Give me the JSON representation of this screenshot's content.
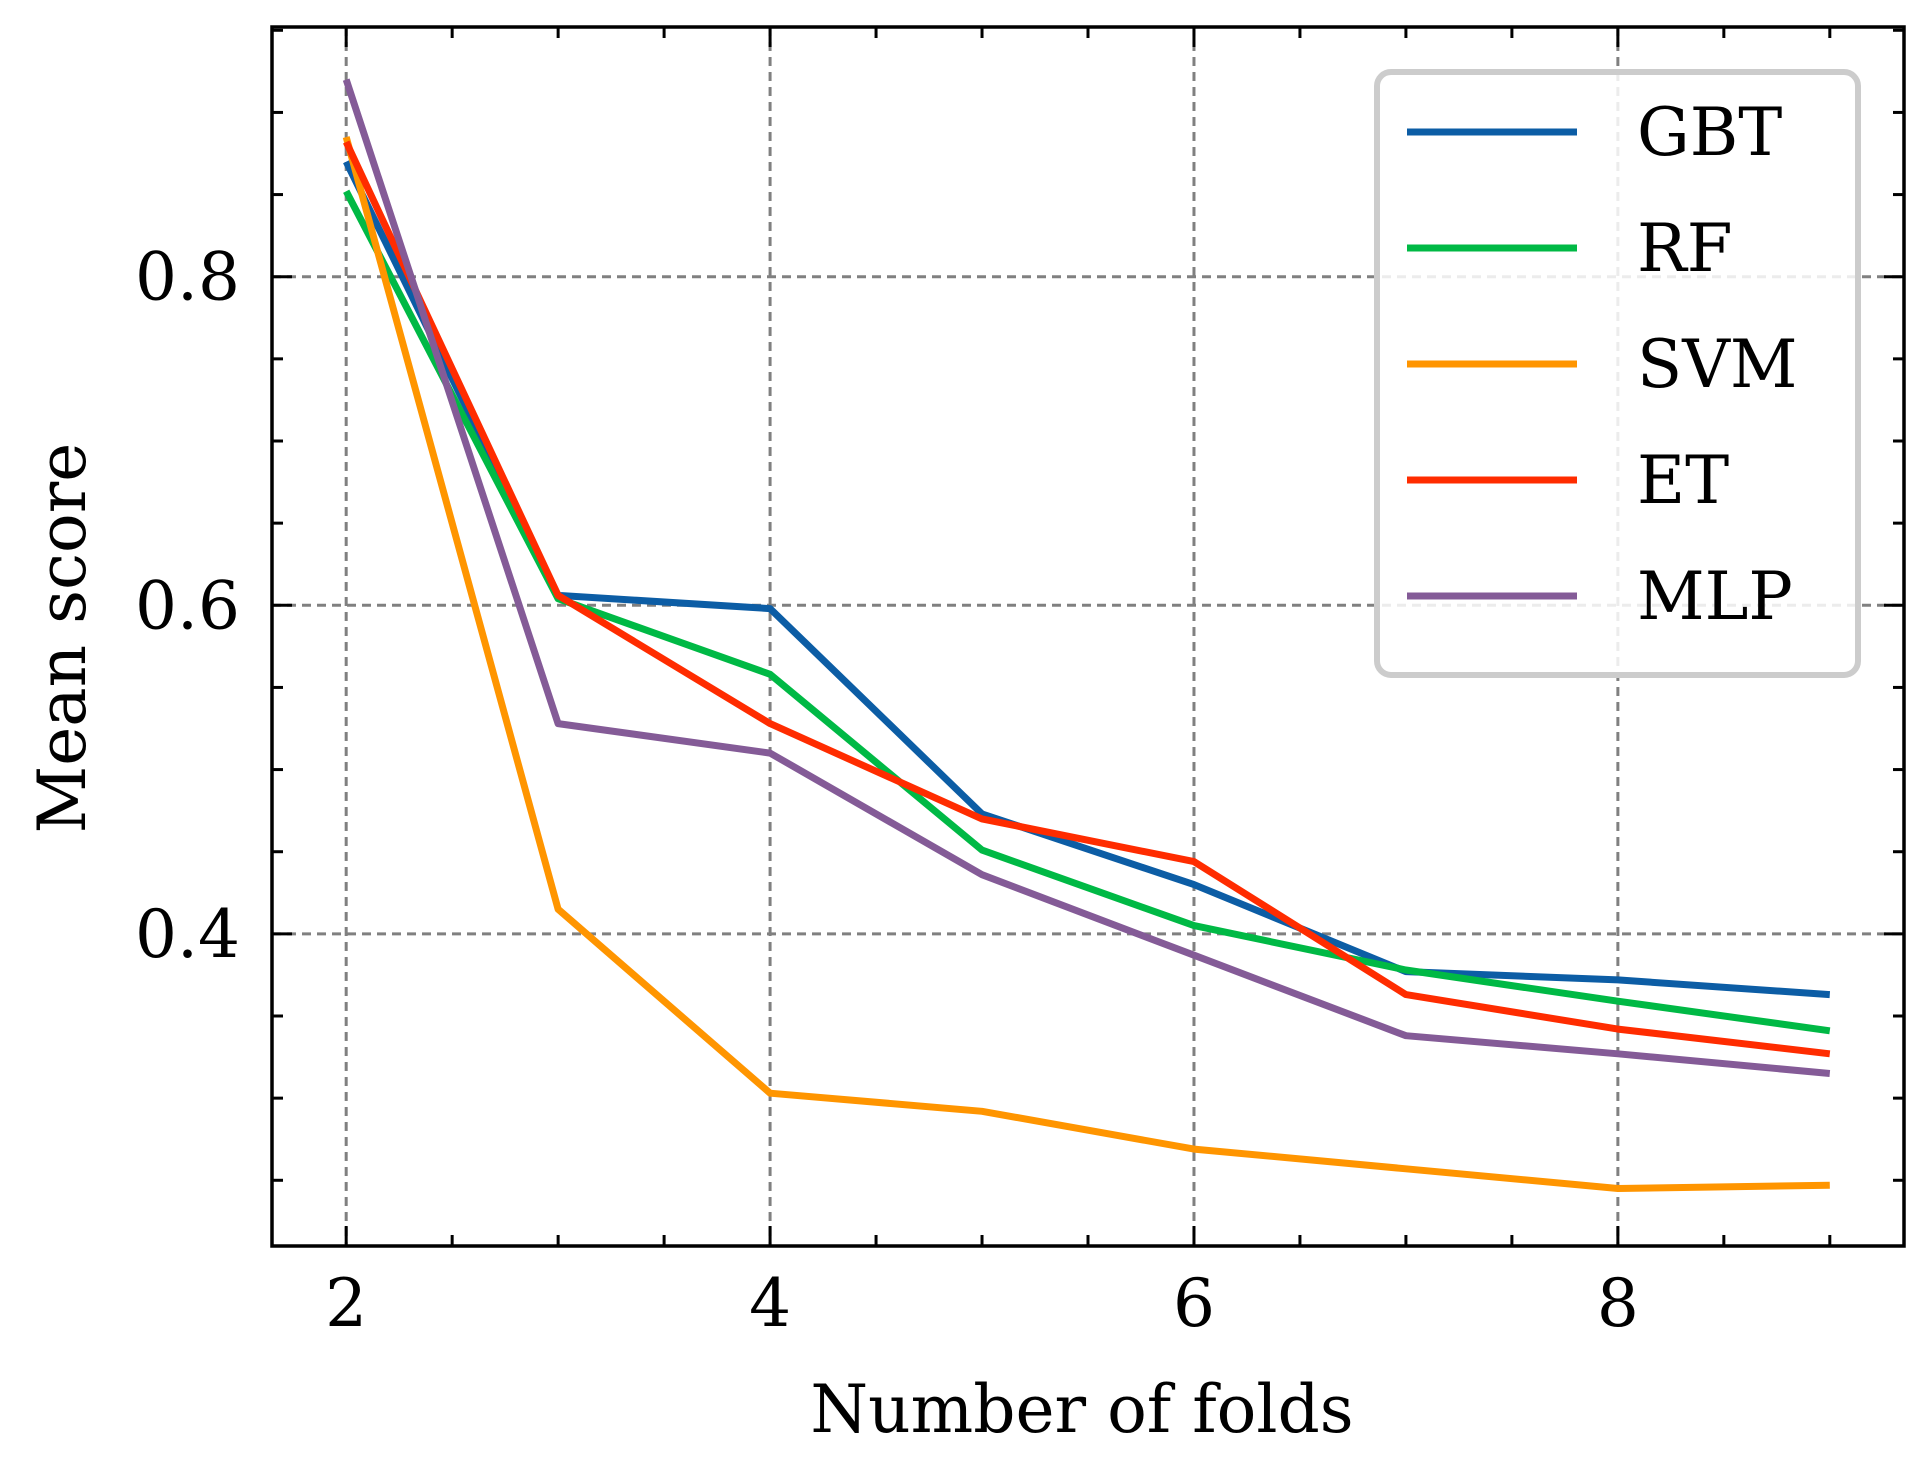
{
  "chart_data": {
    "type": "line",
    "xlabel": "Number of folds",
    "ylabel": "Mean score",
    "xlim": [
      1.65,
      9.35
    ],
    "ylim": [
      0.21,
      0.952
    ],
    "xticks": [
      2,
      4,
      6,
      8
    ],
    "xtick_labels": [
      "2",
      "4",
      "6",
      "8"
    ],
    "yticks": [
      0.4,
      0.6,
      0.8
    ],
    "ytick_labels": [
      "0.4",
      "0.6",
      "0.8"
    ],
    "x_minor_step": 0.5,
    "y_minor_step": 0.05,
    "grid": true,
    "legend_position": "top-right",
    "x": [
      2,
      3,
      4,
      5,
      6,
      7,
      8,
      9
    ],
    "series": [
      {
        "name": "GBT",
        "color": "#0C5DA5",
        "values": [
          0.87,
          0.606,
          0.598,
          0.473,
          0.43,
          0.377,
          0.372,
          0.363
        ]
      },
      {
        "name": "RF",
        "color": "#00B945",
        "values": [
          0.852,
          0.604,
          0.558,
          0.451,
          0.405,
          0.378,
          0.359,
          0.341
        ]
      },
      {
        "name": "SVM",
        "color": "#FF9500",
        "values": [
          0.885,
          0.415,
          0.303,
          0.292,
          0.269,
          0.257,
          0.245,
          0.247
        ]
      },
      {
        "name": "ET",
        "color": "#FF2C00",
        "values": [
          0.882,
          0.606,
          0.528,
          0.47,
          0.444,
          0.363,
          0.342,
          0.327
        ]
      },
      {
        "name": "MLP",
        "color": "#845B97",
        "values": [
          0.92,
          0.528,
          0.51,
          0.436,
          0.387,
          0.338,
          0.327,
          0.315
        ]
      }
    ]
  }
}
